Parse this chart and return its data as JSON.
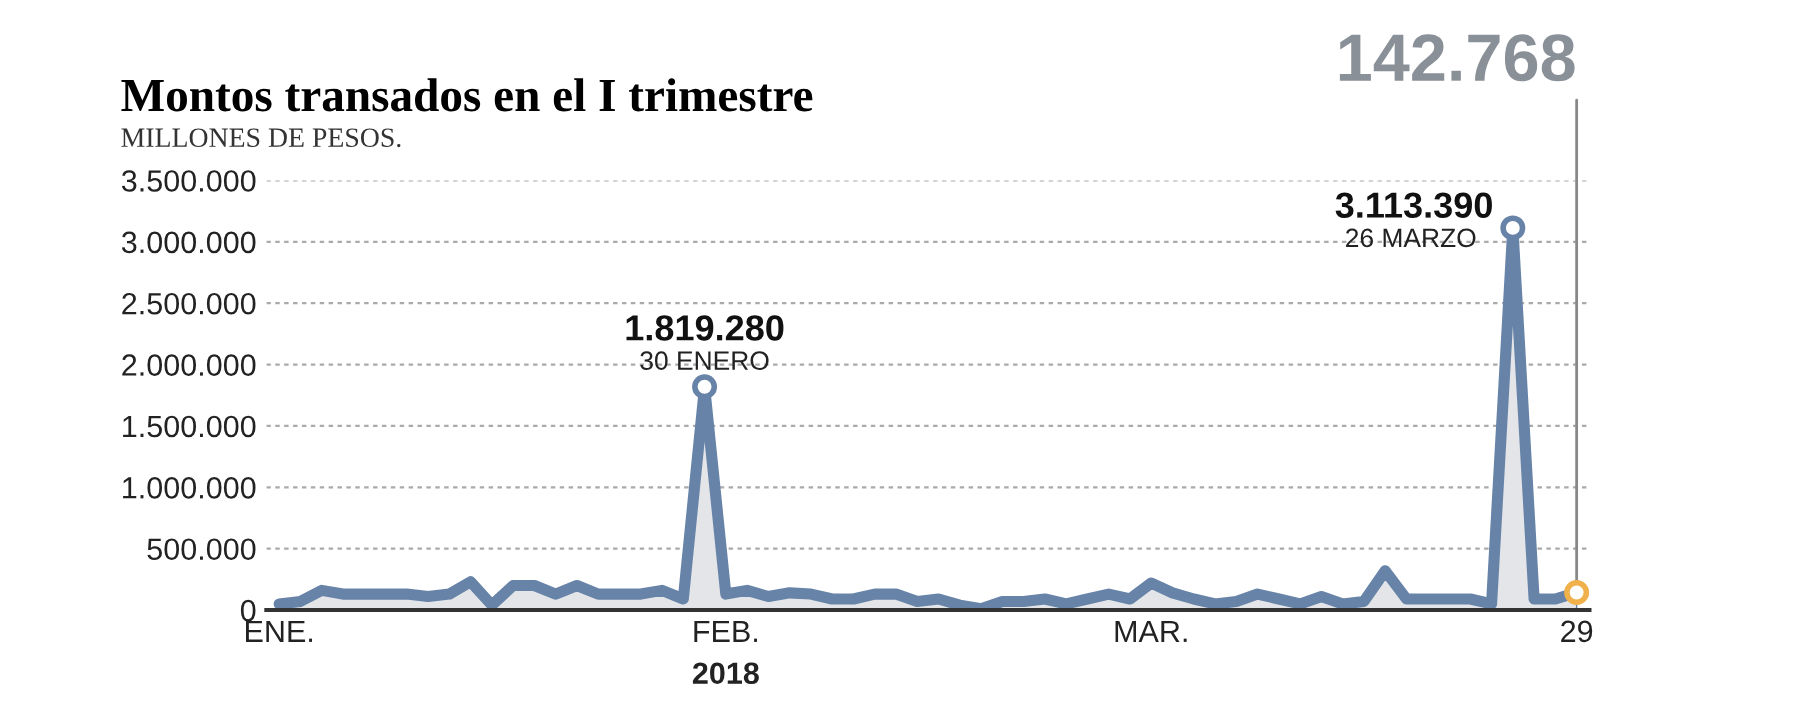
{
  "chart_data": {
    "type": "area",
    "title": "Montos transados en el I trimestre",
    "subtitle": "MILLONES DE PESOS.",
    "xlabel": "2018",
    "categories": [
      "ENE.",
      null,
      null,
      null,
      null,
      null,
      null,
      null,
      null,
      null,
      null,
      null,
      null,
      null,
      null,
      null,
      null,
      null,
      null,
      null,
      null,
      "FEB.",
      null,
      null,
      null,
      null,
      null,
      null,
      null,
      null,
      null,
      null,
      null,
      null,
      null,
      null,
      null,
      null,
      null,
      null,
      null,
      "MAR.",
      null,
      null,
      null,
      null,
      null,
      null,
      null,
      null,
      null,
      null,
      null,
      null,
      null,
      null,
      null,
      null,
      null,
      null,
      null,
      "29"
    ],
    "series": [
      {
        "color": "#6783a8",
        "values": [
          50000,
          70000,
          160000,
          130000,
          130000,
          130000,
          130000,
          110000,
          130000,
          230000,
          40000,
          200000,
          200000,
          130000,
          200000,
          130000,
          130000,
          130000,
          160000,
          90000,
          1819280,
          130000,
          160000,
          110000,
          140000,
          130000,
          90000,
          90000,
          130000,
          130000,
          70000,
          90000,
          40000,
          10000,
          70000,
          70000,
          90000,
          50000,
          90000,
          130000,
          90000,
          220000,
          140000,
          90000,
          50000,
          70000,
          130000,
          90000,
          50000,
          110000,
          50000,
          70000,
          320000,
          90000,
          90000,
          90000,
          90000,
          50000,
          3113390,
          90000,
          90000,
          142768
        ]
      }
    ],
    "ylim": [
      0,
      3500000
    ],
    "yticks": [
      0,
      {
        "value": 500000,
        "label": "500.000"
      },
      {
        "value": 1000000,
        "label": "1.000.000"
      },
      {
        "value": 1500000,
        "label": "1.500.000"
      },
      {
        "value": 2000000,
        "label": "2.000.000"
      },
      {
        "value": 2500000,
        "label": "2.500.000"
      },
      {
        "value": 3000000,
        "label": "3.000.000"
      },
      {
        "value": 3500000,
        "label": "3.500.000"
      }
    ],
    "grid": "y",
    "annotations": [
      {
        "text": "1.819.280",
        "y": 1819280
      },
      {
        "text": "30 ENERO",
        "y": 1819280
      },
      "3.113.390",
      "26 MARZO",
      {
        "text": "142.768",
        "x": "29",
        "y": 142768
      }
    ]
  }
}
